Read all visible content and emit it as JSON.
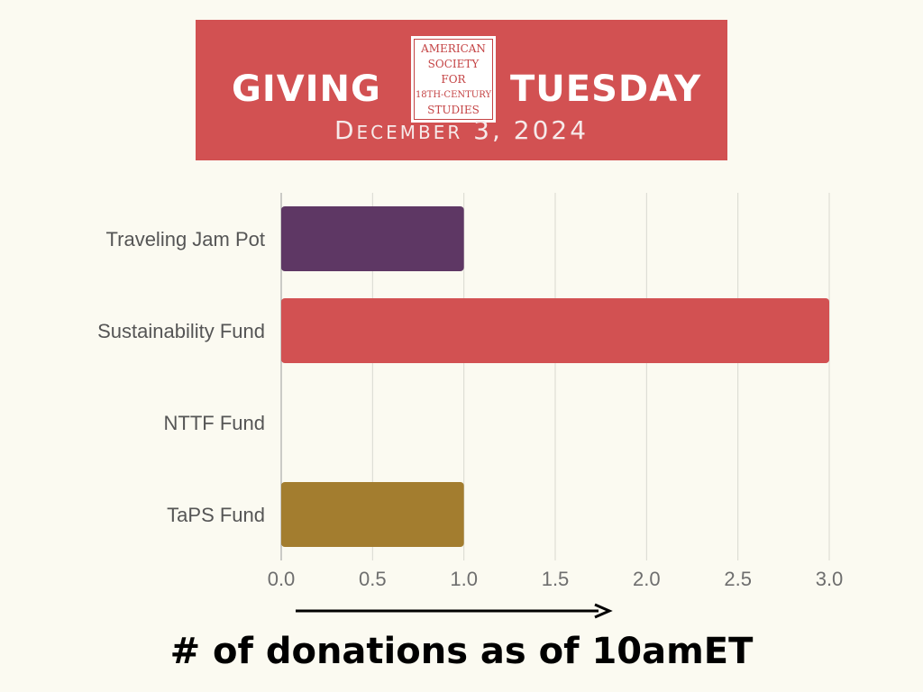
{
  "banner": {
    "giving": "GIVING",
    "tuesday": "TUESDAY",
    "date": "December 3, 2024",
    "org_logo_lines": [
      "AMERICAN",
      "SOCIETY FOR",
      "18TH-CENTURY",
      "STUDIES"
    ],
    "background_color": "#d25152"
  },
  "chart_data": {
    "type": "bar",
    "orientation": "horizontal",
    "categories": [
      "Traveling Jam Pot",
      "Sustainability Fund",
      "NTTF Fund",
      "TaPS Fund"
    ],
    "values": [
      1,
      3,
      0,
      1
    ],
    "colors": [
      "#5e3764",
      "#d25152",
      "#d25152",
      "#a37d2f"
    ],
    "xlim": [
      0,
      3
    ],
    "xticks": [
      "0.0",
      "0.5",
      "1.0",
      "1.5",
      "2.0",
      "2.5",
      "3.0"
    ],
    "grid": true,
    "xlabel": "# of donations as of 10amET"
  }
}
